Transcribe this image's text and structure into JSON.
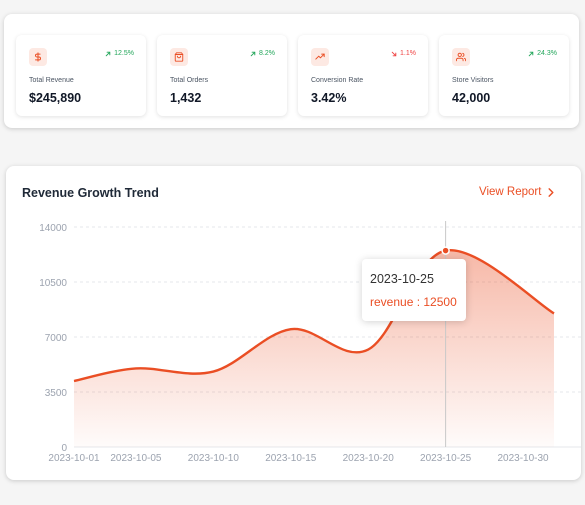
{
  "kpis": [
    {
      "icon": "dollar-icon",
      "label": "Total Revenue",
      "value": "$245,890",
      "delta": "12.5%",
      "trend": "up"
    },
    {
      "icon": "shopping-bag-icon",
      "label": "Total Orders",
      "value": "1,432",
      "delta": "8.2%",
      "trend": "up"
    },
    {
      "icon": "trending-up-icon",
      "label": "Conversion Rate",
      "value": "3.42%",
      "delta": "1.1%",
      "trend": "down"
    },
    {
      "icon": "users-icon",
      "label": "Store Visitors",
      "value": "42,000",
      "delta": "24.3%",
      "trend": "up"
    }
  ],
  "colors": {
    "accent": "#ea4e24",
    "positive": "#22a65a",
    "negative": "#ef4444",
    "icon_bg": "#fde9e3"
  },
  "chart_card": {
    "title": "Revenue Growth Trend",
    "action_label": "View Report"
  },
  "tooltip": {
    "date": "2023-10-25",
    "series_name": "revenue",
    "value": "12500",
    "text": "revenue : 12500"
  },
  "chart_data": {
    "type": "area",
    "title": "Revenue Growth Trend",
    "xlabel": "",
    "ylabel": "",
    "x_ticks": [
      "2023-10-01",
      "2023-10-05",
      "2023-10-10",
      "2023-10-15",
      "2023-10-20",
      "2023-10-25",
      "2023-10-30"
    ],
    "y_ticks": [
      0,
      3500,
      7000,
      10500,
      14000
    ],
    "ylim": [
      0,
      14000
    ],
    "x_range": [
      "2023-10-01",
      "2023-11-01"
    ],
    "grid": "horizontal dashed",
    "series": [
      {
        "name": "revenue",
        "points": [
          {
            "x": "2023-10-01",
            "y": 4200
          },
          {
            "x": "2023-10-05",
            "y": 5000
          },
          {
            "x": "2023-10-10",
            "y": 4800
          },
          {
            "x": "2023-10-15",
            "y": 7500
          },
          {
            "x": "2023-10-20",
            "y": 6200
          },
          {
            "x": "2023-10-25",
            "y": 12500
          },
          {
            "x": "2023-11-01",
            "y": 8500
          }
        ]
      }
    ]
  }
}
